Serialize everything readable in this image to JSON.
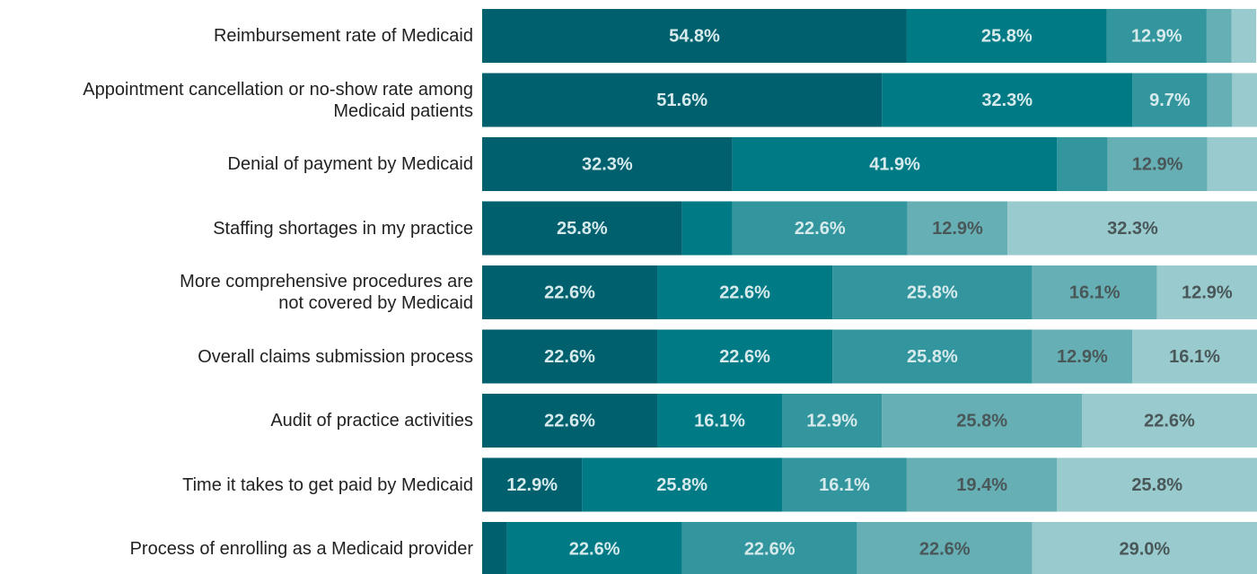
{
  "chart_data": {
    "type": "stacked_bar_horizontal",
    "categories": [
      "Reimbursement rate of Medicaid",
      "Appointment cancellation or no-show rate among\nMedicaid patients",
      "Denial of payment by Medicaid",
      "Staffing shortages in my practice",
      "More comprehensive procedures are\nnot covered by Medicaid",
      "Overall claims submission process",
      "Audit of practice activities",
      "Time it takes to get paid by Medicaid",
      "Process of enrolling as a Medicaid provider"
    ],
    "xlim": [
      0,
      100
    ],
    "series": [
      {
        "color": "#00606e",
        "label_color": "#d6eaec",
        "values": [
          54.8,
          51.6,
          32.3,
          25.8,
          22.6,
          22.6,
          22.6,
          12.9,
          3.2
        ],
        "value_labels": [
          "54.8%",
          "51.6%",
          "32.3%",
          "25.8%",
          "22.6%",
          "22.6%",
          "22.6%",
          "12.9%",
          null
        ]
      },
      {
        "color": "#007a85",
        "label_color": "#d6eaec",
        "values": [
          25.8,
          32.3,
          41.9,
          6.5,
          22.6,
          22.6,
          16.1,
          25.8,
          22.6
        ],
        "value_labels": [
          "25.8%",
          "32.3%",
          "41.9%",
          null,
          "22.6%",
          "22.6%",
          "16.1%",
          "25.8%",
          "22.6%"
        ]
      },
      {
        "color": "#33969e",
        "label_color": "#d6eaec",
        "values": [
          12.9,
          9.7,
          6.5,
          22.6,
          25.8,
          25.8,
          12.9,
          16.1,
          22.6
        ],
        "value_labels": [
          "12.9%",
          "9.7%",
          null,
          "22.6%",
          "25.8%",
          "25.8%",
          "12.9%",
          "16.1%",
          "22.6%"
        ]
      },
      {
        "color": "#66b0b5",
        "label_color": "#4a5759",
        "values": [
          3.2,
          3.2,
          12.9,
          12.9,
          16.1,
          12.9,
          25.8,
          19.4,
          22.6
        ],
        "value_labels": [
          null,
          null,
          "12.9%",
          "12.9%",
          "16.1%",
          "12.9%",
          "25.8%",
          "19.4%",
          "22.6%"
        ]
      },
      {
        "color": "#99cace",
        "label_color": "#4a5759",
        "values": [
          3.2,
          3.2,
          6.5,
          32.3,
          12.9,
          16.1,
          22.6,
          25.8,
          29.0
        ],
        "value_labels": [
          null,
          null,
          null,
          "32.3%",
          "12.9%",
          "16.1%",
          "22.6%",
          "25.8%",
          "29.0%"
        ]
      }
    ]
  }
}
